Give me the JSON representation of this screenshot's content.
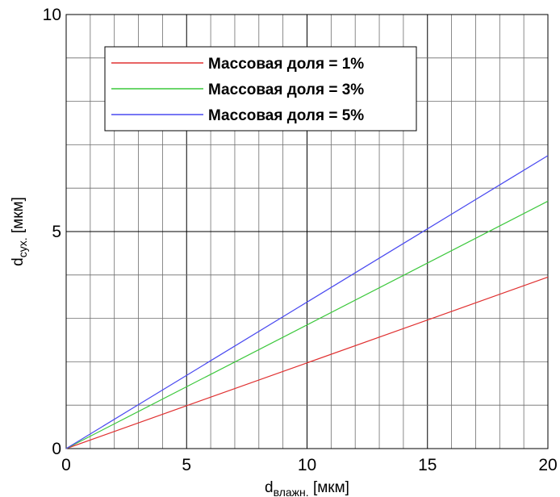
{
  "chart_data": {
    "type": "line",
    "title": "",
    "xlabel": {
      "base": "d",
      "sub": "влажн.",
      "unit": " [мкм]"
    },
    "ylabel": {
      "base": "d",
      "sub": "сух.",
      "unit": " [мкм]"
    },
    "xlim": [
      0,
      20
    ],
    "ylim": [
      0,
      10
    ],
    "xticks": [
      "0",
      "5",
      "10",
      "15",
      "20"
    ],
    "yticks": [
      "0",
      "5",
      "10"
    ],
    "grid": true,
    "legend_position": "top-left",
    "series": [
      {
        "name": "Массовая доля = 1%",
        "color": "#e03030",
        "x": [
          0,
          20
        ],
        "y": [
          0,
          3.95
        ]
      },
      {
        "name": "Массовая доля = 3%",
        "color": "#3cc83c",
        "x": [
          0,
          20
        ],
        "y": [
          0,
          5.7
        ]
      },
      {
        "name": "Массовая доля = 5%",
        "color": "#4a4af0",
        "x": [
          0,
          20
        ],
        "y": [
          0,
          6.75
        ]
      }
    ]
  }
}
